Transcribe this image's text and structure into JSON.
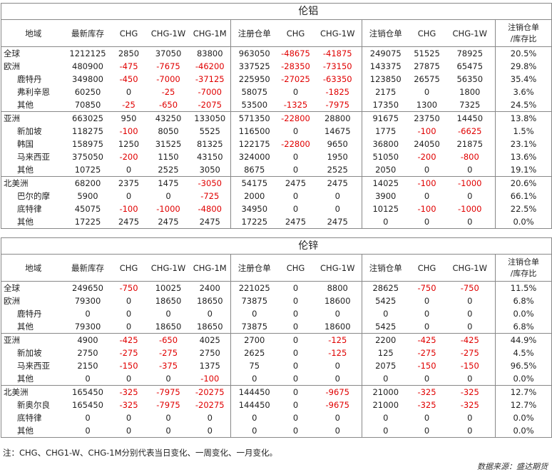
{
  "sections": [
    {
      "title": "伦铝",
      "headers": [
        "地域",
        "最新库存",
        "CHG",
        "CHG-1W",
        "CHG-1M",
        "注册仓单",
        "CHG",
        "CHG-1W",
        "注销仓单",
        "CHG",
        "CHG-1W",
        "注销仓单\n/库存比"
      ],
      "rows": [
        [
          "全球",
          "1212125",
          "2850",
          "37050",
          "83800",
          "963050",
          "-48675",
          "-41875",
          "249075",
          "51525",
          "78925",
          "20.5%"
        ],
        [
          "欧洲",
          "480900",
          "-475",
          "-7675",
          "-46200",
          "337525",
          "-28350",
          "-73150",
          "143375",
          "27875",
          "65475",
          "29.8%"
        ],
        [
          "鹿特丹",
          "349800",
          "-450",
          "-7000",
          "-37125",
          "225950",
          "-27025",
          "-63350",
          "123850",
          "26575",
          "56350",
          "35.4%"
        ],
        [
          "弗利辛恩",
          "60250",
          "0",
          "-25",
          "-7000",
          "58075",
          "0",
          "-1825",
          "2175",
          "0",
          "1800",
          "3.6%"
        ],
        [
          "其他",
          "70850",
          "-25",
          "-650",
          "-2075",
          "53500",
          "-1325",
          "-7975",
          "17350",
          "1300",
          "7325",
          "24.5%"
        ],
        [
          "亚洲",
          "663025",
          "950",
          "43250",
          "133050",
          "571350",
          "-22800",
          "28800",
          "91675",
          "23750",
          "14450",
          "13.8%"
        ],
        [
          "新加坡",
          "118275",
          "-100",
          "8050",
          "5525",
          "116500",
          "0",
          "14675",
          "1775",
          "-100",
          "-6625",
          "1.5%"
        ],
        [
          "韩国",
          "158975",
          "1250",
          "31525",
          "81325",
          "122175",
          "-22800",
          "9650",
          "36800",
          "24050",
          "21875",
          "23.1%"
        ],
        [
          "马来西亚",
          "375050",
          "-200",
          "1150",
          "43150",
          "324000",
          "0",
          "1950",
          "51050",
          "-200",
          "-800",
          "13.6%"
        ],
        [
          "其他",
          "10725",
          "0",
          "2525",
          "3050",
          "8675",
          "0",
          "2525",
          "2050",
          "0",
          "0",
          "19.1%"
        ],
        [
          "北美洲",
          "68200",
          "2375",
          "1475",
          "-3050",
          "54175",
          "2475",
          "2475",
          "14025",
          "-100",
          "-1000",
          "20.6%"
        ],
        [
          "巴尔的摩",
          "5900",
          "0",
          "0",
          "-725",
          "2000",
          "0",
          "0",
          "3900",
          "0",
          "0",
          "66.1%"
        ],
        [
          "底特律",
          "45075",
          "-100",
          "-1000",
          "-4800",
          "34950",
          "0",
          "0",
          "10125",
          "-100",
          "-1000",
          "22.5%"
        ],
        [
          "其他",
          "17225",
          "2475",
          "2475",
          "2475",
          "17225",
          "2475",
          "2475",
          "0",
          "0",
          "0",
          "0.0%"
        ]
      ]
    },
    {
      "title": "伦锌",
      "headers": [
        "地域",
        "最新库存",
        "CHG",
        "CHG-1W",
        "CHG-1M",
        "注册仓单",
        "CHG",
        "CHG-1W",
        "注销仓单",
        "CHG",
        "CHG-1W",
        "注销仓单\n/库存比"
      ],
      "rows": [
        [
          "全球",
          "249650",
          "-750",
          "10025",
          "2400",
          "221025",
          "0",
          "8800",
          "28625",
          "-750",
          "-750",
          "11.5%"
        ],
        [
          "欧洲",
          "79300",
          "0",
          "18650",
          "18650",
          "73875",
          "0",
          "18600",
          "5425",
          "0",
          "0",
          "6.8%"
        ],
        [
          "鹿特丹",
          "0",
          "0",
          "0",
          "0",
          "0",
          "0",
          "0",
          "0",
          "0",
          "0",
          "0.0%"
        ],
        [
          "其他",
          "79300",
          "0",
          "18650",
          "18650",
          "73875",
          "0",
          "18600",
          "5425",
          "0",
          "0",
          "6.8%"
        ],
        [
          "亚洲",
          "4900",
          "-425",
          "-650",
          "4025",
          "2700",
          "0",
          "-125",
          "2200",
          "-425",
          "-425",
          "44.9%"
        ],
        [
          "新加坡",
          "2750",
          "-275",
          "-275",
          "2750",
          "2625",
          "0",
          "-125",
          "125",
          "-275",
          "-275",
          "4.5%"
        ],
        [
          "马来西亚",
          "2150",
          "-150",
          "-375",
          "1375",
          "75",
          "0",
          "0",
          "2075",
          "-150",
          "-150",
          "96.5%"
        ],
        [
          "其他",
          "0",
          "0",
          "0",
          "-100",
          "0",
          "0",
          "0",
          "0",
          "0",
          "0",
          "0.0%"
        ],
        [
          "北美洲",
          "165450",
          "-325",
          "-7975",
          "-20275",
          "144450",
          "0",
          "-9675",
          "21000",
          "-325",
          "-325",
          "12.7%"
        ],
        [
          "新奥尔良",
          "165450",
          "-325",
          "-7975",
          "-20275",
          "144450",
          "0",
          "-9675",
          "21000",
          "-325",
          "-325",
          "12.7%"
        ],
        [
          "底特律",
          "0",
          "0",
          "0",
          "0",
          "0",
          "0",
          "0",
          "0",
          "0",
          "0",
          "0.0%"
        ],
        [
          "其他",
          "0",
          "0",
          "0",
          "0",
          "0",
          "0",
          "0",
          "0",
          "0",
          "0",
          "0.0%"
        ]
      ]
    }
  ],
  "note": "注：CHG、CHG1-W、CHG-1M分别代表当日变化、一周变化、一月变化。",
  "source": "数据来源：盛达期货",
  "colors": {
    "negative": "#e00000",
    "border": "#888888"
  }
}
